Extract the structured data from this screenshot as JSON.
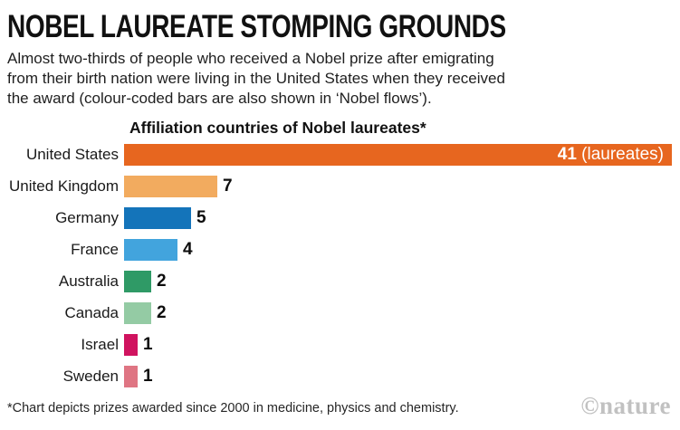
{
  "header": {
    "title": "NOBEL LAUREATE STOMPING GROUNDS",
    "subtitle_lines": [
      "Almost two-thirds of people who received a Nobel prize after emigrating",
      "from their birth nation were living in the United States when they received",
      "the award (colour-coded bars are also shown in ‘Nobel flows’)."
    ]
  },
  "chart": {
    "title": "Affiliation countries of Nobel laureates*",
    "max_value": 41,
    "bars": [
      {
        "country": "United States",
        "value": 41,
        "color": "#E7661F",
        "label_inside": true,
        "value_suffix": " (laureates)"
      },
      {
        "country": "United Kingdom",
        "value": 7,
        "color": "#F2AB5F",
        "label_inside": false
      },
      {
        "country": "Germany",
        "value": 5,
        "color": "#1474BA",
        "label_inside": false
      },
      {
        "country": "France",
        "value": 4,
        "color": "#42A4DD",
        "label_inside": false
      },
      {
        "country": "Australia",
        "value": 2,
        "color": "#2F9A66",
        "label_inside": false
      },
      {
        "country": "Canada",
        "value": 2,
        "color": "#94CBA4",
        "label_inside": false
      },
      {
        "country": "Israel",
        "value": 1,
        "color": "#D0135F",
        "label_inside": false
      },
      {
        "country": "Sweden",
        "value": 1,
        "color": "#DF7583",
        "label_inside": false
      }
    ]
  },
  "footer": {
    "footnote": "*Chart depicts prizes awarded since 2000 in medicine, physics and chemistry.",
    "credit": "©nature"
  },
  "chart_data": {
    "type": "bar",
    "orientation": "horizontal",
    "title": "Affiliation countries of Nobel laureates*",
    "categories": [
      "United States",
      "United Kingdom",
      "Germany",
      "France",
      "Australia",
      "Canada",
      "Israel",
      "Sweden"
    ],
    "values": [
      41,
      7,
      5,
      4,
      2,
      2,
      1,
      1
    ],
    "bar_colors": [
      "#E7661F",
      "#F2AB5F",
      "#1474BA",
      "#42A4DD",
      "#2F9A66",
      "#94CBA4",
      "#D0135F",
      "#DF7583"
    ],
    "value_unit": "laureates",
    "value_labels": [
      "41 (laureates)",
      "7",
      "5",
      "4",
      "2",
      "2",
      "1",
      "1"
    ],
    "xlabel": "",
    "ylabel": "",
    "xlim": [
      0,
      41
    ],
    "grid": false,
    "legend": false
  }
}
